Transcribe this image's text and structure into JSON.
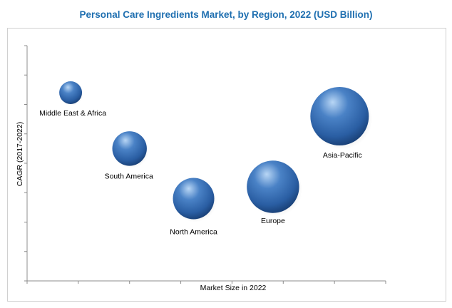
{
  "chart_data": {
    "type": "bubble",
    "title": "Personal Care Ingredients Market, by Region, 2022 (USD Billion)",
    "xlabel": "Market Size in 2022",
    "ylabel": "CAGR (2017-2022)",
    "xlim": [
      0,
      7
    ],
    "ylim": [
      0,
      8
    ],
    "x_tick_count": 7,
    "y_tick_count": 8,
    "grid": false,
    "legend": "none",
    "bubble_color": "#2f62a8",
    "points": [
      {
        "label": "Middle East & Africa",
        "x": 0.85,
        "y": 6.4,
        "size": 1.0
      },
      {
        "label": "South America",
        "x": 2.0,
        "y": 4.5,
        "size": 2.3
      },
      {
        "label": "North America",
        "x": 3.25,
        "y": 2.8,
        "size": 3.3
      },
      {
        "label": "Europe",
        "x": 4.8,
        "y": 3.2,
        "size": 5.3
      },
      {
        "label": "Asia-Pacific",
        "x": 6.1,
        "y": 5.6,
        "size": 6.6
      }
    ]
  }
}
